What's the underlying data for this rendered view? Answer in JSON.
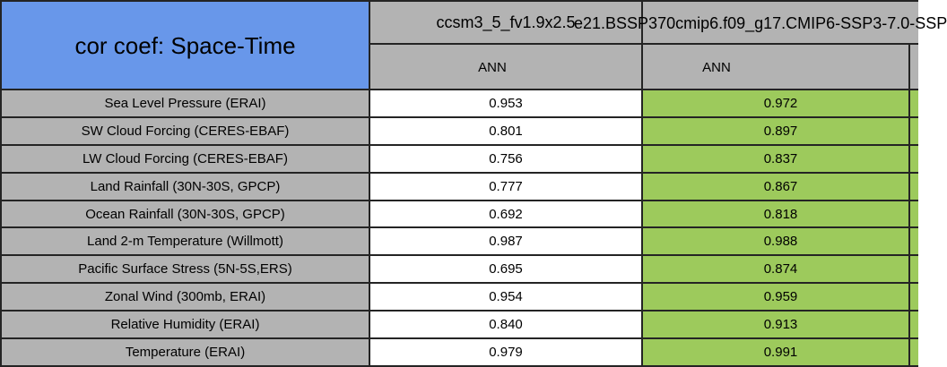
{
  "table": {
    "title": "cor coef: Space-Time",
    "columns": [
      {
        "model": "ccsm3_5_fv1.9x2.5",
        "season": "ANN"
      },
      {
        "model": "e21.BSSP370cmip6.f09_g17.CMIP6-SSP3-7.0-SSP",
        "season": "ANN"
      }
    ],
    "rows": [
      {
        "label": "Sea Level Pressure (ERAI)",
        "values": [
          "0.953",
          "0.972"
        ]
      },
      {
        "label": "SW Cloud Forcing (CERES-EBAF)",
        "values": [
          "0.801",
          "0.897"
        ]
      },
      {
        "label": "LW Cloud Forcing (CERES-EBAF)",
        "values": [
          "0.756",
          "0.837"
        ]
      },
      {
        "label": "Land Rainfall (30N-30S, GPCP)",
        "values": [
          "0.777",
          "0.867"
        ]
      },
      {
        "label": "Ocean Rainfall (30N-30S, GPCP)",
        "values": [
          "0.692",
          "0.818"
        ]
      },
      {
        "label": "Land 2-m Temperature (Willmott)",
        "values": [
          "0.987",
          "0.988"
        ]
      },
      {
        "label": "Pacific Surface Stress (5N-5S,ERS)",
        "values": [
          "0.695",
          "0.874"
        ]
      },
      {
        "label": "Zonal Wind (300mb, ERAI)",
        "values": [
          "0.954",
          "0.959"
        ]
      },
      {
        "label": "Relative Humidity (ERAI)",
        "values": [
          "0.840",
          "0.913"
        ]
      },
      {
        "label": "Temperature (ERAI)",
        "values": [
          "0.979",
          "0.991"
        ]
      }
    ]
  },
  "colors": {
    "title_bg": "#6897ea",
    "header_bg": "#b3b3b3",
    "label_bg": "#b3b3b3",
    "model1_value_bg": "#ffffff",
    "model2_value_bg": "#9dca5c",
    "border": "#242424",
    "text": "#000000"
  },
  "chart_data": {
    "type": "table",
    "title": "cor coef: Space-Time",
    "categories": [
      "Sea Level Pressure (ERAI)",
      "SW Cloud Forcing (CERES-EBAF)",
      "LW Cloud Forcing (CERES-EBAF)",
      "Land Rainfall (30N-30S, GPCP)",
      "Ocean Rainfall (30N-30S, GPCP)",
      "Land 2-m Temperature (Willmott)",
      "Pacific Surface Stress (5N-5S,ERS)",
      "Zonal Wind (300mb, ERAI)",
      "Relative Humidity (ERAI)",
      "Temperature (ERAI)"
    ],
    "series": [
      {
        "name": "ccsm3_5_fv1.9x2.5",
        "season": "ANN",
        "values": [
          0.953,
          0.801,
          0.756,
          0.777,
          0.692,
          0.987,
          0.695,
          0.954,
          0.84,
          0.979
        ]
      },
      {
        "name": "e21.BSSP370cmip6.f09_g17.CMIP6-SSP3-7.0-SSP",
        "season": "ANN",
        "values": [
          0.972,
          0.897,
          0.837,
          0.867,
          0.818,
          0.988,
          0.874,
          0.959,
          0.913,
          0.991
        ]
      }
    ]
  }
}
